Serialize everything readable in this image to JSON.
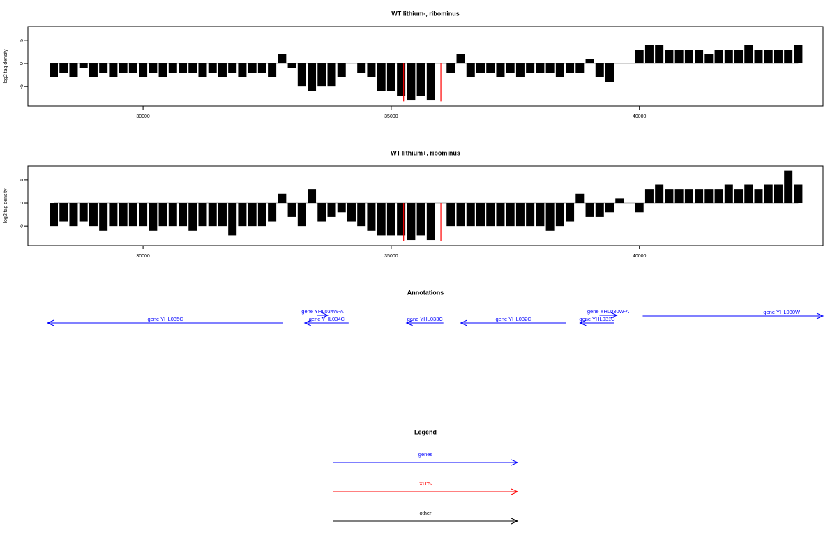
{
  "chart_data": [
    {
      "type": "bar",
      "title": "WT lithium-, ribominus",
      "ylabel": "log2 tag density",
      "x": [
        28200,
        28400,
        28600,
        28800,
        29000,
        29200,
        29400,
        29600,
        29800,
        30000,
        30200,
        30400,
        30600,
        30800,
        31000,
        31200,
        31400,
        31600,
        31800,
        32000,
        32200,
        32400,
        32600,
        32800,
        33000,
        33200,
        33400,
        33600,
        33800,
        34000,
        34200,
        34400,
        34600,
        34800,
        35000,
        35200,
        35400,
        35600,
        35800,
        36000,
        36200,
        36400,
        36600,
        36800,
        37000,
        37200,
        37400,
        37600,
        37800,
        38000,
        38200,
        38400,
        38600,
        38800,
        39000,
        39200,
        39400,
        39600,
        39800,
        40000,
        40200,
        40400,
        40600,
        40800,
        41000,
        41200,
        41400,
        41600,
        41800,
        42000,
        42200,
        42400,
        42600,
        42800,
        43000,
        43200
      ],
      "values": [
        -3,
        -2,
        -3,
        -1,
        -3,
        -2,
        -3,
        -2,
        -2,
        -3,
        -2,
        -3,
        -2,
        -2,
        -2,
        -3,
        -2,
        -3,
        -2,
        -3,
        -2,
        -2,
        -3,
        2,
        -1,
        -5,
        -6,
        -5,
        -5,
        -3,
        0,
        -2,
        -3,
        -6,
        -6,
        -7,
        -8,
        -7,
        -8,
        0,
        -2,
        2,
        -3,
        -2,
        -2,
        -3,
        -2,
        -3,
        -2,
        -2,
        -2,
        -3,
        -2,
        -2,
        1,
        -3,
        -4,
        0,
        0,
        3,
        4,
        4,
        3,
        3,
        3,
        3,
        2,
        3,
        3,
        3,
        4,
        3,
        3,
        3,
        3,
        4
      ],
      "color": "#000000",
      "highlight": {
        "x": [
          35250,
          36000
        ],
        "values": [
          -8.2,
          -8.2
        ],
        "color": "#ff0000"
      },
      "xlim": [
        27680,
        43700
      ],
      "ylim": [
        -9.2,
        8
      ],
      "xticks": [
        30000,
        35000,
        40000
      ],
      "yticks": [
        -5,
        0,
        5
      ]
    },
    {
      "type": "bar",
      "title": "WT lithium+, ribominus",
      "ylabel": "log2 tag density",
      "x": [
        28200,
        28400,
        28600,
        28800,
        29000,
        29200,
        29400,
        29600,
        29800,
        30000,
        30200,
        30400,
        30600,
        30800,
        31000,
        31200,
        31400,
        31600,
        31800,
        32000,
        32200,
        32400,
        32600,
        32800,
        33000,
        33200,
        33400,
        33600,
        33800,
        34000,
        34200,
        34400,
        34600,
        34800,
        35000,
        35200,
        35400,
        35600,
        35800,
        36000,
        36200,
        36400,
        36600,
        36800,
        37000,
        37200,
        37400,
        37600,
        37800,
        38000,
        38200,
        38400,
        38600,
        38800,
        39000,
        39200,
        39400,
        39600,
        39800,
        40000,
        40200,
        40400,
        40600,
        40800,
        41000,
        41200,
        41400,
        41600,
        41800,
        42000,
        42200,
        42400,
        42600,
        42800,
        43000,
        43200
      ],
      "values": [
        -5,
        -4,
        -5,
        -4,
        -5,
        -6,
        -5,
        -5,
        -5,
        -5,
        -6,
        -5,
        -5,
        -5,
        -6,
        -5,
        -5,
        -5,
        -7,
        -5,
        -5,
        -5,
        -4,
        2,
        -3,
        -5,
        3,
        -4,
        -3,
        -2,
        -4,
        -5,
        -6,
        -7,
        -7,
        -7,
        -8,
        -7,
        -8,
        0,
        -5,
        -5,
        -5,
        -5,
        -5,
        -5,
        -5,
        -5,
        -5,
        -5,
        -6,
        -5,
        -4,
        2,
        -3,
        -3,
        -2,
        1,
        0,
        -2,
        3,
        4,
        3,
        3,
        3,
        3,
        3,
        3,
        4,
        3,
        4,
        3,
        4,
        4,
        7,
        4
      ],
      "color": "#000000",
      "highlight": {
        "x": [
          35250,
          36000
        ],
        "values": [
          -8.2,
          -8.2
        ],
        "color": "#ff0000"
      },
      "xlim": [
        27680,
        43700
      ],
      "ylim": [
        -9.2,
        8
      ],
      "xticks": [
        30000,
        35000,
        40000
      ],
      "yticks": [
        -5,
        0,
        5
      ]
    }
  ],
  "annotations": {
    "title": "Annotations",
    "color": "#0000ff",
    "genes": [
      {
        "label": "gene YHL035C",
        "start": 32823,
        "end": 28077
      },
      {
        "label": "gene YHL034W-A",
        "start": 33510,
        "end": 33721
      },
      {
        "label": "gene YHL034C",
        "start": 34142,
        "end": 33257
      },
      {
        "label": "gene YHL033C",
        "start": 36051,
        "end": 35307
      },
      {
        "label": "gene YHL032C",
        "start": 38522,
        "end": 36402
      },
      {
        "label": "gene YHL031C",
        "start": 39491,
        "end": 38803
      },
      {
        "label": "gene YHL030W-A",
        "start": 39196,
        "end": 39547
      },
      {
        "label": "gene YHL030W",
        "start": 40067,
        "end": 43700
      }
    ]
  },
  "legend": {
    "title": "Legend",
    "entries": [
      {
        "label": "genes",
        "color": "#0000ff"
      },
      {
        "label": "XUTs",
        "color": "#ff0000"
      },
      {
        "label": "other",
        "color": "#000000"
      }
    ]
  }
}
